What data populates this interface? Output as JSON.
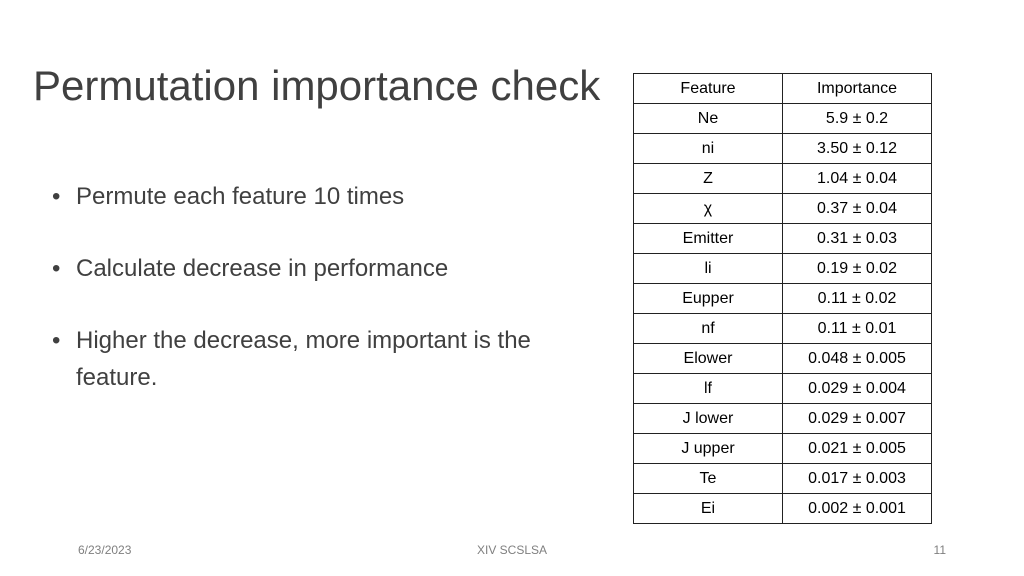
{
  "slide": {
    "title": "Permutation importance check",
    "bullets": [
      "Permute each feature 10 times",
      "Calculate decrease in performance",
      "Higher the decrease, more important is the feature."
    ]
  },
  "table": {
    "headers": [
      "Feature",
      "Importance"
    ],
    "rows": [
      [
        "Ne",
        "5.9 ± 0.2"
      ],
      [
        "ni",
        "3.50 ± 0.12"
      ],
      [
        "Z",
        "1.04 ± 0.04"
      ],
      [
        "χ",
        "0.37 ± 0.04"
      ],
      [
        "Emitter",
        "0.31 ± 0.03"
      ],
      [
        "li",
        "0.19 ± 0.02"
      ],
      [
        "Eupper",
        "0.11 ± 0.02"
      ],
      [
        "nf",
        "0.11 ± 0.01"
      ],
      [
        "Elower",
        "0.048 ± 0.005"
      ],
      [
        "lf",
        "0.029 ± 0.004"
      ],
      [
        "J lower",
        "0.029 ± 0.007"
      ],
      [
        "J upper",
        "0.021 ± 0.005"
      ],
      [
        "Te",
        "0.017 ± 0.003"
      ],
      [
        "Ei",
        "0.002 ± 0.001"
      ]
    ]
  },
  "footer": {
    "date": "6/23/2023",
    "center": "XIV SCSLSA",
    "page_number": "11"
  }
}
